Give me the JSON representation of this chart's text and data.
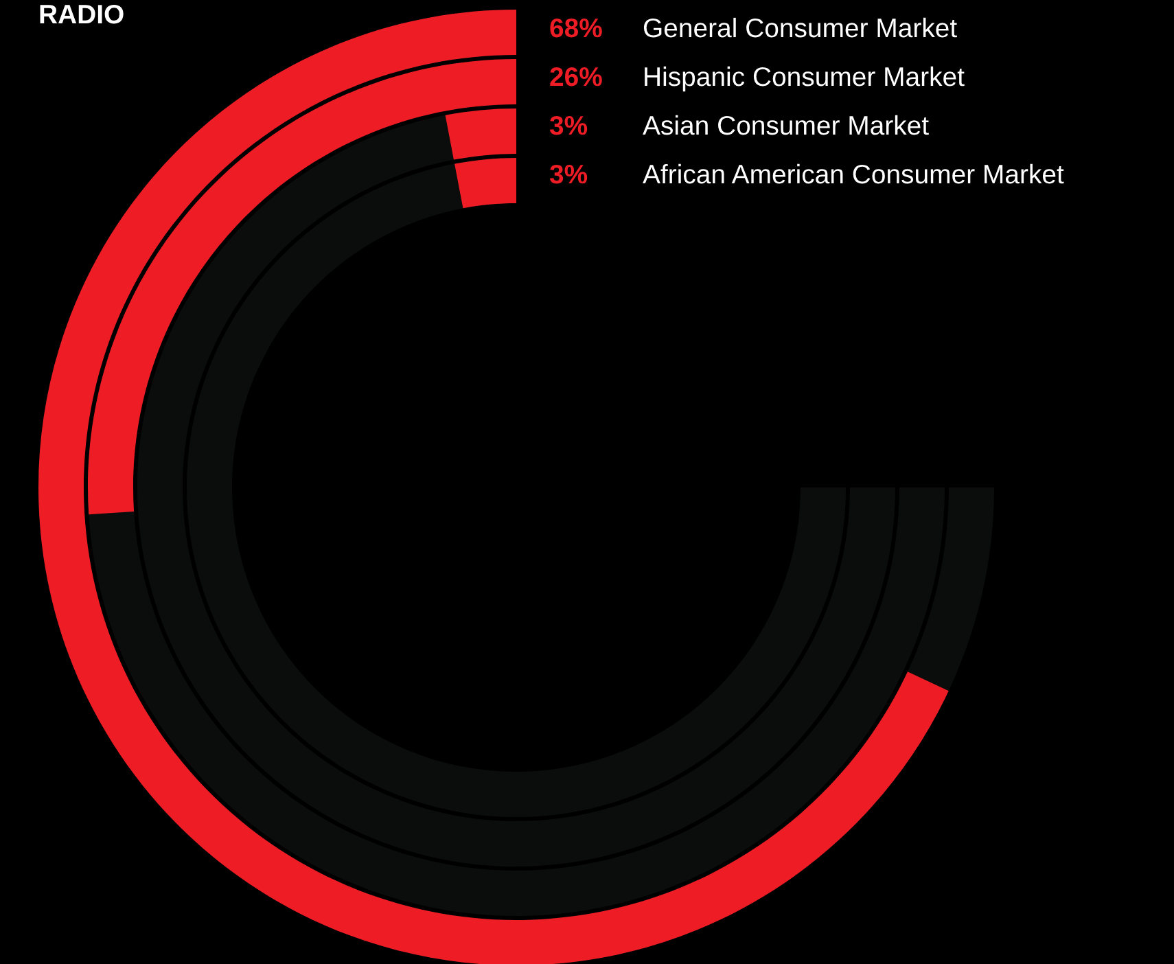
{
  "chart_data": {
    "type": "other",
    "title": "RADIO",
    "categories": [
      "General Consumer Market",
      "Hispanic Consumer Market",
      "Asian Consumer Market",
      "African American Consumer Market"
    ],
    "values": [
      68,
      26,
      3,
      3
    ],
    "value_labels": [
      "68%",
      "26%",
      "3%",
      "3%"
    ],
    "colors": [
      "#ee1c25",
      "#ee1c25",
      "#ee1c25",
      "#ee1c25"
    ]
  }
}
